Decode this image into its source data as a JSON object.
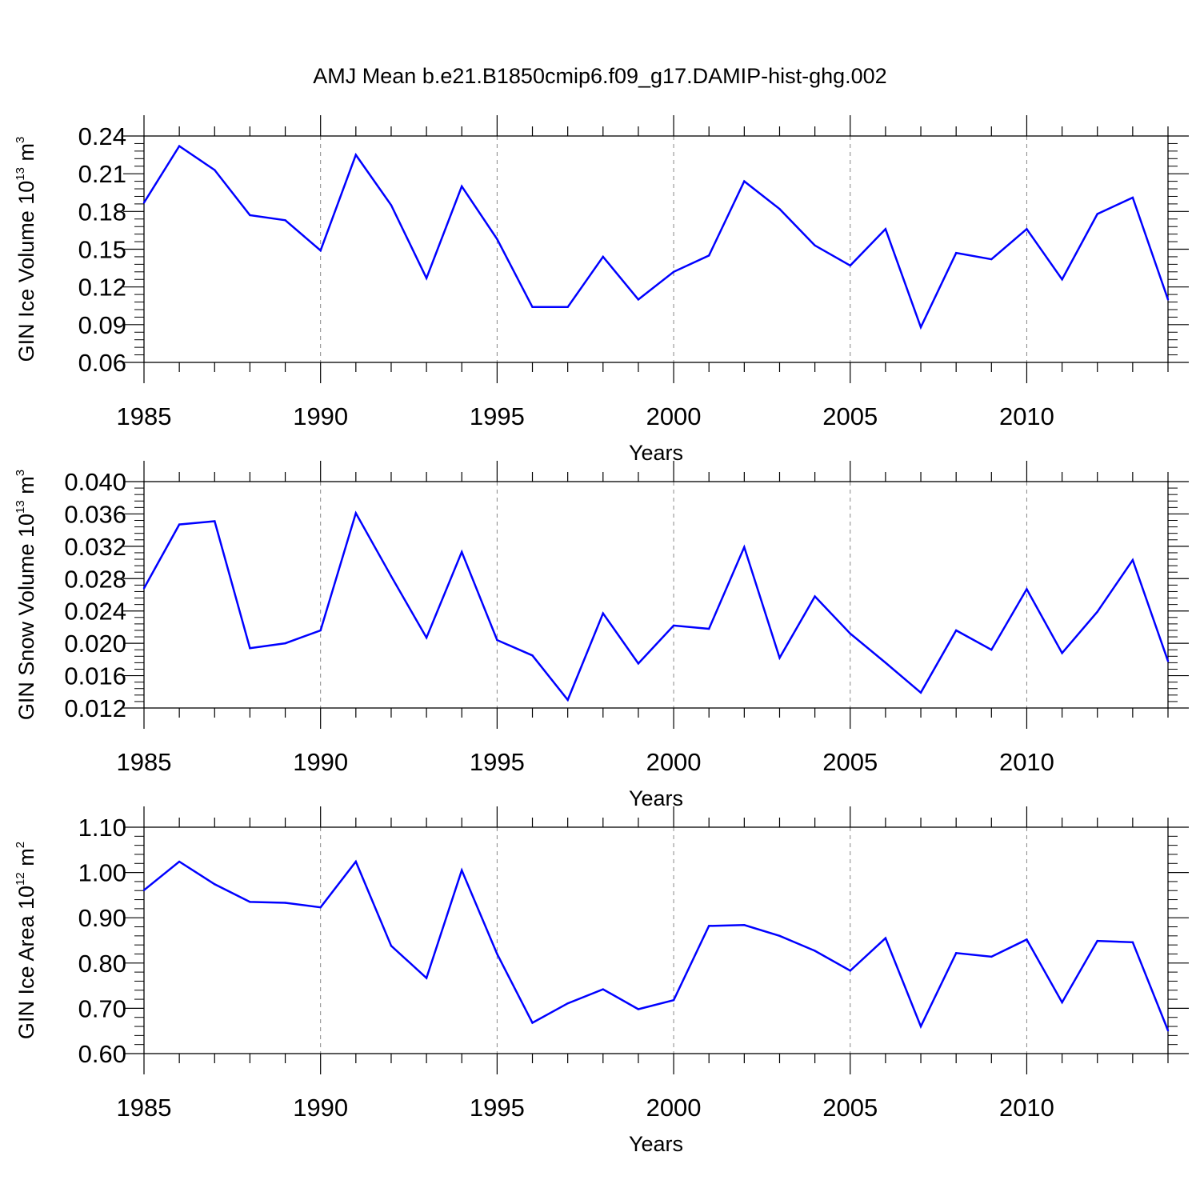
{
  "title": "AMJ Mean b.e21.B1850cmip6.f09_g17.DAMIP-hist-ghg.002",
  "colors": {
    "series": "#0000ff",
    "axis": "#000000",
    "grid": "#888888"
  },
  "chart_data": [
    {
      "type": "line",
      "title": "AMJ Mean b.e21.B1850cmip6.f09_g17.DAMIP-hist-ghg.002",
      "xlabel": "Years",
      "ylabel": {
        "text": "GIN Ice Volume 10",
        "sup": "13",
        "unit": " m",
        "unit_sup": "3"
      },
      "xlim": [
        1985,
        2014
      ],
      "ylim": [
        0.06,
        0.24
      ],
      "xticks": [
        1985,
        1990,
        1995,
        2000,
        2005,
        2010
      ],
      "yticks": [
        "0.06",
        "0.09",
        "0.12",
        "0.15",
        "0.18",
        "0.21",
        "0.24"
      ],
      "x": [
        1985,
        1986,
        1987,
        1988,
        1989,
        1990,
        1991,
        1992,
        1993,
        1994,
        1995,
        1996,
        1997,
        1998,
        1999,
        2000,
        2001,
        2002,
        2003,
        2004,
        2005,
        2006,
        2007,
        2008,
        2009,
        2010,
        2011,
        2012,
        2013,
        2014
      ],
      "values": [
        0.187,
        0.232,
        0.213,
        0.177,
        0.173,
        0.149,
        0.225,
        0.185,
        0.127,
        0.2,
        0.158,
        0.104,
        0.104,
        0.144,
        0.11,
        0.132,
        0.145,
        0.204,
        0.182,
        0.153,
        0.137,
        0.166,
        0.088,
        0.147,
        0.142,
        0.166,
        0.126,
        0.178,
        0.191,
        0.11
      ]
    },
    {
      "type": "line",
      "xlabel": "Years",
      "ylabel": {
        "text": "GIN Snow Volume 10",
        "sup": "13",
        "unit": " m",
        "unit_sup": "3"
      },
      "xlim": [
        1985,
        2014
      ],
      "ylim": [
        0.012,
        0.04
      ],
      "xticks": [
        1985,
        1990,
        1995,
        2000,
        2005,
        2010
      ],
      "yticks": [
        "0.012",
        "0.016",
        "0.020",
        "0.024",
        "0.028",
        "0.032",
        "0.036",
        "0.040"
      ],
      "x": [
        1985,
        1986,
        1987,
        1988,
        1989,
        1990,
        1991,
        1992,
        1993,
        1994,
        1995,
        1996,
        1997,
        1998,
        1999,
        2000,
        2001,
        2002,
        2003,
        2004,
        2005,
        2006,
        2007,
        2008,
        2009,
        2010,
        2011,
        2012,
        2013,
        2014
      ],
      "values": [
        0.0268,
        0.0347,
        0.0351,
        0.0194,
        0.02,
        0.0216,
        0.0361,
        0.0283,
        0.0207,
        0.0313,
        0.0204,
        0.0185,
        0.013,
        0.0237,
        0.0175,
        0.0222,
        0.0218,
        0.0319,
        0.0182,
        0.0258,
        0.0212,
        0.0176,
        0.0139,
        0.0216,
        0.0192,
        0.0267,
        0.0188,
        0.0239,
        0.0303,
        0.0178
      ]
    },
    {
      "type": "line",
      "xlabel": "Years",
      "ylabel": {
        "text": "GIN Ice Area 10",
        "sup": "12",
        "unit": " m",
        "unit_sup": "2"
      },
      "xlim": [
        1985,
        2014
      ],
      "ylim": [
        0.6,
        1.1
      ],
      "xticks": [
        1985,
        1990,
        1995,
        2000,
        2005,
        2010
      ],
      "yticks": [
        "0.60",
        "0.70",
        "0.80",
        "0.90",
        "1.00",
        "1.10"
      ],
      "x": [
        1985,
        1986,
        1987,
        1988,
        1989,
        1990,
        1991,
        1992,
        1993,
        1994,
        1995,
        1996,
        1997,
        1998,
        1999,
        2000,
        2001,
        2002,
        2003,
        2004,
        2005,
        2006,
        2007,
        2008,
        2009,
        2010,
        2011,
        2012,
        2013,
        2014
      ],
      "values": [
        0.961,
        1.024,
        0.974,
        0.935,
        0.933,
        0.923,
        1.024,
        0.838,
        0.767,
        1.005,
        0.82,
        0.668,
        0.711,
        0.742,
        0.698,
        0.718,
        0.882,
        0.884,
        0.86,
        0.827,
        0.783,
        0.855,
        0.66,
        0.822,
        0.814,
        0.852,
        0.713,
        0.849,
        0.846,
        0.651
      ]
    }
  ]
}
